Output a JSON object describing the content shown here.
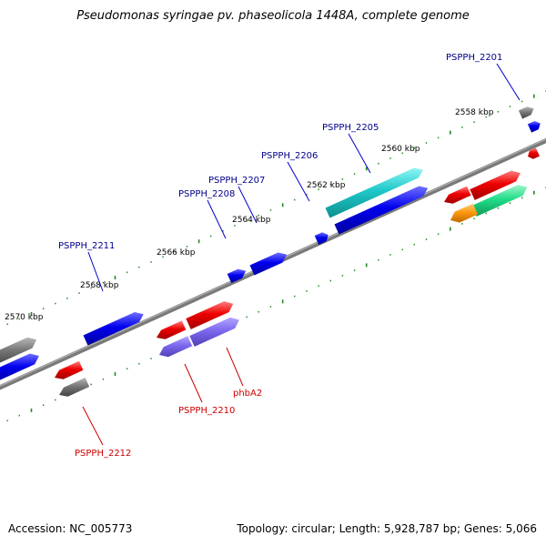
{
  "title": "Pseudomonas syringae pv. phaseolicola 1448A, complete genome",
  "footer": {
    "accession": "Accession: NC_005773",
    "summary": "Topology: circular; Length: 5,928,787 bp; Genes: 5,066"
  },
  "colors": {
    "plus_label": "#00008b",
    "minus_label": "#cc0000",
    "tick": "#228b22",
    "backbone": "#808080"
  },
  "ticks": [
    "2558 kbp",
    "2560 kbp",
    "2562 kbp",
    "2564 kbp",
    "2566 kbp",
    "2568 kbp",
    "2570 kbp"
  ],
  "gene_labels": [
    {
      "text": "PSPPH_2201",
      "strand": "plus"
    },
    {
      "text": "PSPPH_2205",
      "strand": "plus"
    },
    {
      "text": "PSPPH_2206",
      "strand": "plus"
    },
    {
      "text": "PSPPH_2207",
      "strand": "plus"
    },
    {
      "text": "PSPPH_2208",
      "strand": "plus"
    },
    {
      "text": "PSPPH_2211",
      "strand": "plus"
    },
    {
      "text": "PSPPH_2210",
      "strand": "minus"
    },
    {
      "text": "phbA2",
      "strand": "minus"
    },
    {
      "text": "PSPPH_2212",
      "strand": "minus"
    }
  ]
}
